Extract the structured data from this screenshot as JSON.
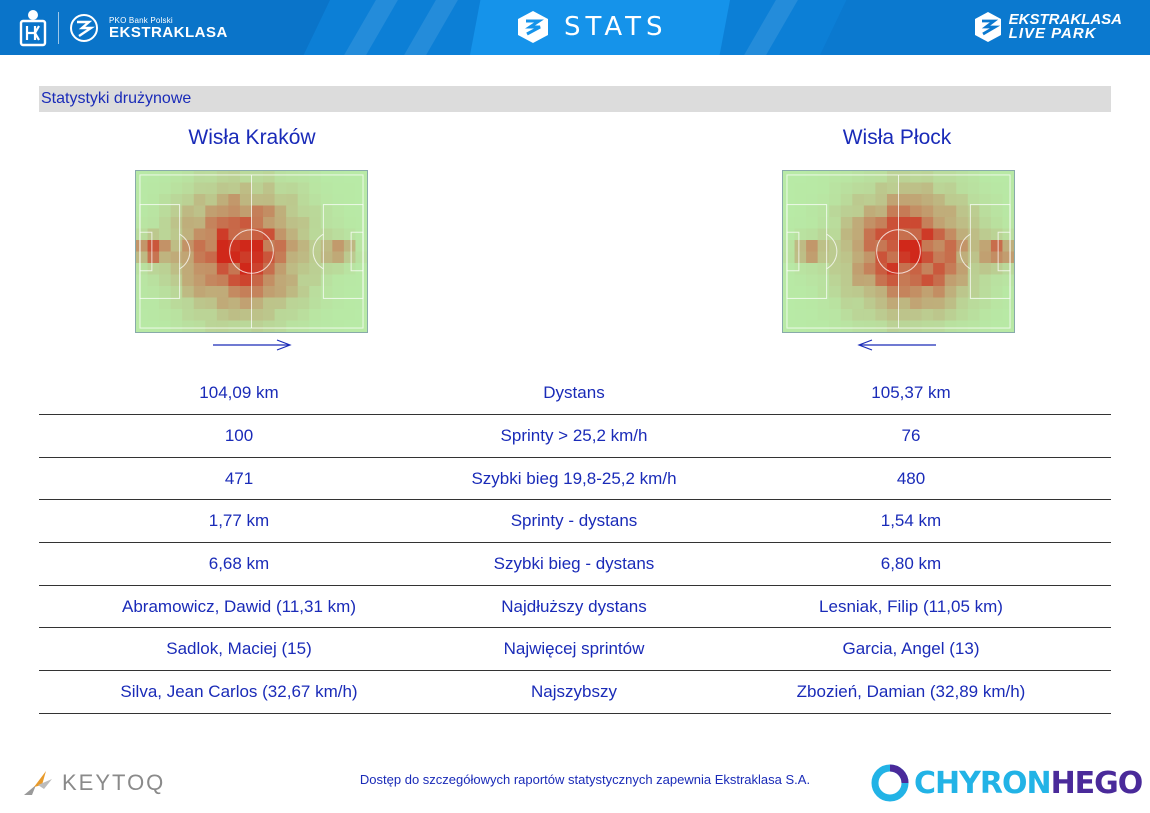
{
  "header": {
    "pko_small": "PKO Bank Polski",
    "league_name": "EKSTRAKLASA",
    "stats_title": "STATS",
    "live_park_line1": "EKSTRAKLASA",
    "live_park_line2": "LIVE PARK"
  },
  "section_title": "Statystyki drużynowe",
  "teams": {
    "home": {
      "name": "Wisła Kraków",
      "attack_direction": "right"
    },
    "away": {
      "name": "Wisła Płock",
      "attack_direction": "left"
    }
  },
  "stats": [
    {
      "home": "104,09 km",
      "label": "Dystans",
      "away": "105,37 km"
    },
    {
      "home": "100",
      "label": "Sprinty > 25,2 km/h",
      "away": "76"
    },
    {
      "home": "471",
      "label": "Szybki bieg 19,8-25,2 km/h",
      "away": "480"
    },
    {
      "home": "1,77 km",
      "label": "Sprinty - dystans",
      "away": "1,54 km"
    },
    {
      "home": "6,68 km",
      "label": "Szybki bieg - dystans",
      "away": "6,80 km"
    },
    {
      "home": "Abramowicz, Dawid (11,31 km)",
      "label": "Najdłuższy dystans",
      "away": "Lesniak, Filip (11,05 km)"
    },
    {
      "home": "Sadlok, Maciej (15)",
      "label": "Najwięcej sprintów",
      "away": "Garcia, Angel (13)"
    },
    {
      "home": "Silva, Jean Carlos (32,67 km/h)",
      "label": "Najszybszy",
      "away": "Zbozień, Damian (32,89 km/h)"
    }
  ],
  "footer": {
    "keytoq": "KEYTOQ",
    "note": "Dostęp do szczegółowych raportów statystycznych zapewnia Ekstraklasa S.A.",
    "chyron_a": "CHYRON",
    "chyron_b": "HEGO"
  },
  "colors": {
    "header_blue": "#0c7fd6",
    "text_blue": "#1a2bb8",
    "section_bg": "#dcdcdc",
    "heat_low": "#b8eaa6",
    "heat_high": "#d0281a"
  }
}
